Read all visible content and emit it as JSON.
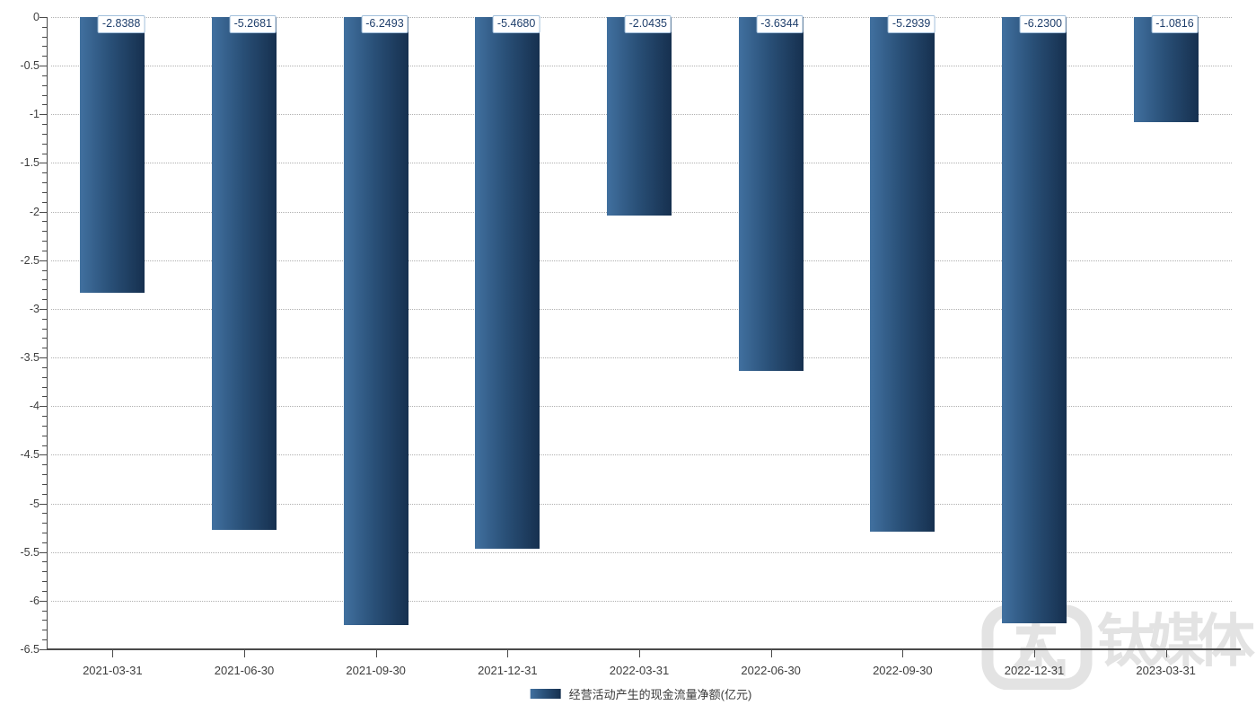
{
  "chart_data": {
    "type": "bar",
    "title": "",
    "categories": [
      "2021-03-31",
      "2021-06-30",
      "2021-09-30",
      "2021-12-31",
      "2022-03-31",
      "2022-06-30",
      "2022-09-30",
      "2022-12-31",
      "2023-03-31"
    ],
    "series": [
      {
        "name": "经营活动产生的现金流量净额(亿元)",
        "values": [
          -2.8388,
          -5.2681,
          -6.2493,
          -5.468,
          -2.0435,
          -3.6344,
          -5.2939,
          -6.23,
          -1.0816
        ],
        "labels": [
          "-2.8388",
          "-5.2681",
          "-6.2493",
          "-5.4680",
          "-2.0435",
          "-3.6344",
          "-5.2939",
          "-6.2300",
          "-1.0816"
        ]
      }
    ],
    "xlabel": "",
    "ylabel": "",
    "ylim": [
      -6.5,
      0
    ],
    "y_major_step": 0.5,
    "y_minor_step": 0.1,
    "y_tick_labels": [
      "0",
      "-0.5",
      "-1",
      "-1.5",
      "-2",
      "-2.5",
      "-3",
      "-3.5",
      "-4",
      "-4.5",
      "-5",
      "-5.5",
      "-6",
      "-6.5"
    ],
    "grid": "horizontal dotted",
    "legend_position": "bottom-center",
    "colors": {
      "bar_gradient_left": "#41709f",
      "bar_gradient_right": "#16304f",
      "value_label_text": "#1e3e6b",
      "value_label_border": "#a3c0dc",
      "grid_line": "#b0b0b0",
      "axis_line": "#4a4a4a",
      "tick_text": "#3d3d3d"
    }
  },
  "legend": {
    "label": "经营活动产生的现金流量净额(亿元)"
  },
  "watermark": {
    "text": "钛媒体",
    "logo": "tmtpost-logo",
    "color": "#e3e3e3"
  }
}
